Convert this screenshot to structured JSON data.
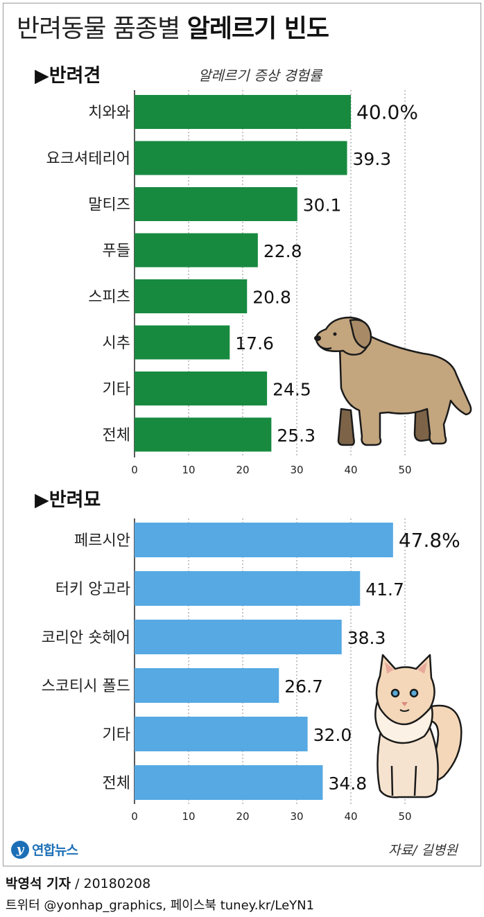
{
  "title": {
    "light": "반려동물 품종별",
    "bold": "알레르기 빈도"
  },
  "metric_label": "알레르기 증상 경험률",
  "source": "자료/ 길병원",
  "logo_text": "연합뉴스",
  "reporter": {
    "name": "박영석 기자",
    "date": "/ 20180208"
  },
  "social": "트위터 @yonhap_graphics, 페이스북 tuney.kr/LeYN1",
  "colors": {
    "dog_bar": "#178a3f",
    "cat_bar": "#56a9e3",
    "dog_fur": "#c3a57e",
    "cat_fur": "#f3d7b8"
  },
  "icons": [
    "dog-illustration",
    "cat-illustration",
    "yonhap-logo-icon"
  ],
  "chart_data": [
    {
      "type": "bar",
      "orientation": "horizontal",
      "title": "▶반려견",
      "categories": [
        "치와와",
        "요크셔테리어",
        "말티즈",
        "푸들",
        "스피츠",
        "시추",
        "기타",
        "전체"
      ],
      "values": [
        40.0,
        39.3,
        30.1,
        22.8,
        20.8,
        17.6,
        24.5,
        25.3
      ],
      "value_labels": [
        "40.0%",
        "39.3",
        "30.1",
        "22.8",
        "20.8",
        "17.6",
        "24.5",
        "25.3"
      ],
      "xticks": [
        "0",
        "10",
        "20",
        "30",
        "40",
        "50"
      ],
      "xlim": [
        0,
        50
      ],
      "grid": true
    },
    {
      "type": "bar",
      "orientation": "horizontal",
      "title": "▶반려묘",
      "categories": [
        "페르시안",
        "터키 앙고라",
        "코리안 숏헤어",
        "스코티시 폴드",
        "기타",
        "전체"
      ],
      "values": [
        47.8,
        41.7,
        38.3,
        26.7,
        32.0,
        34.8
      ],
      "value_labels": [
        "47.8%",
        "41.7",
        "38.3",
        "26.7",
        "32.0",
        "34.8"
      ],
      "xticks": [
        "0",
        "10",
        "20",
        "30",
        "40",
        "50"
      ],
      "xlim": [
        0,
        50
      ],
      "grid": true
    }
  ]
}
